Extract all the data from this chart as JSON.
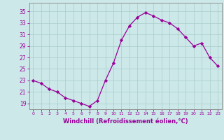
{
  "x": [
    0,
    1,
    2,
    3,
    4,
    5,
    6,
    7,
    8,
    9,
    10,
    11,
    12,
    13,
    14,
    15,
    16,
    17,
    18,
    19,
    20,
    21,
    22,
    23
  ],
  "y": [
    23,
    22.5,
    21.5,
    21,
    20,
    19.5,
    19,
    18.5,
    19.5,
    23,
    26,
    30,
    32.5,
    34,
    34.8,
    34.2,
    33.5,
    33,
    32,
    30.5,
    29,
    29.5,
    27,
    25.5
  ],
  "line_color": "#990099",
  "marker": "D",
  "marker_size": 2.2,
  "bg_color": "#cce8e8",
  "grid_color": "#aacccc",
  "xlabel": "Windchill (Refroidissement éolien,°C)",
  "xlabel_color": "#990099",
  "tick_color": "#990099",
  "yticks": [
    19,
    21,
    23,
    25,
    27,
    29,
    31,
    33,
    35
  ],
  "ylim": [
    18.0,
    36.5
  ],
  "xlim": [
    -0.5,
    23.5
  ]
}
